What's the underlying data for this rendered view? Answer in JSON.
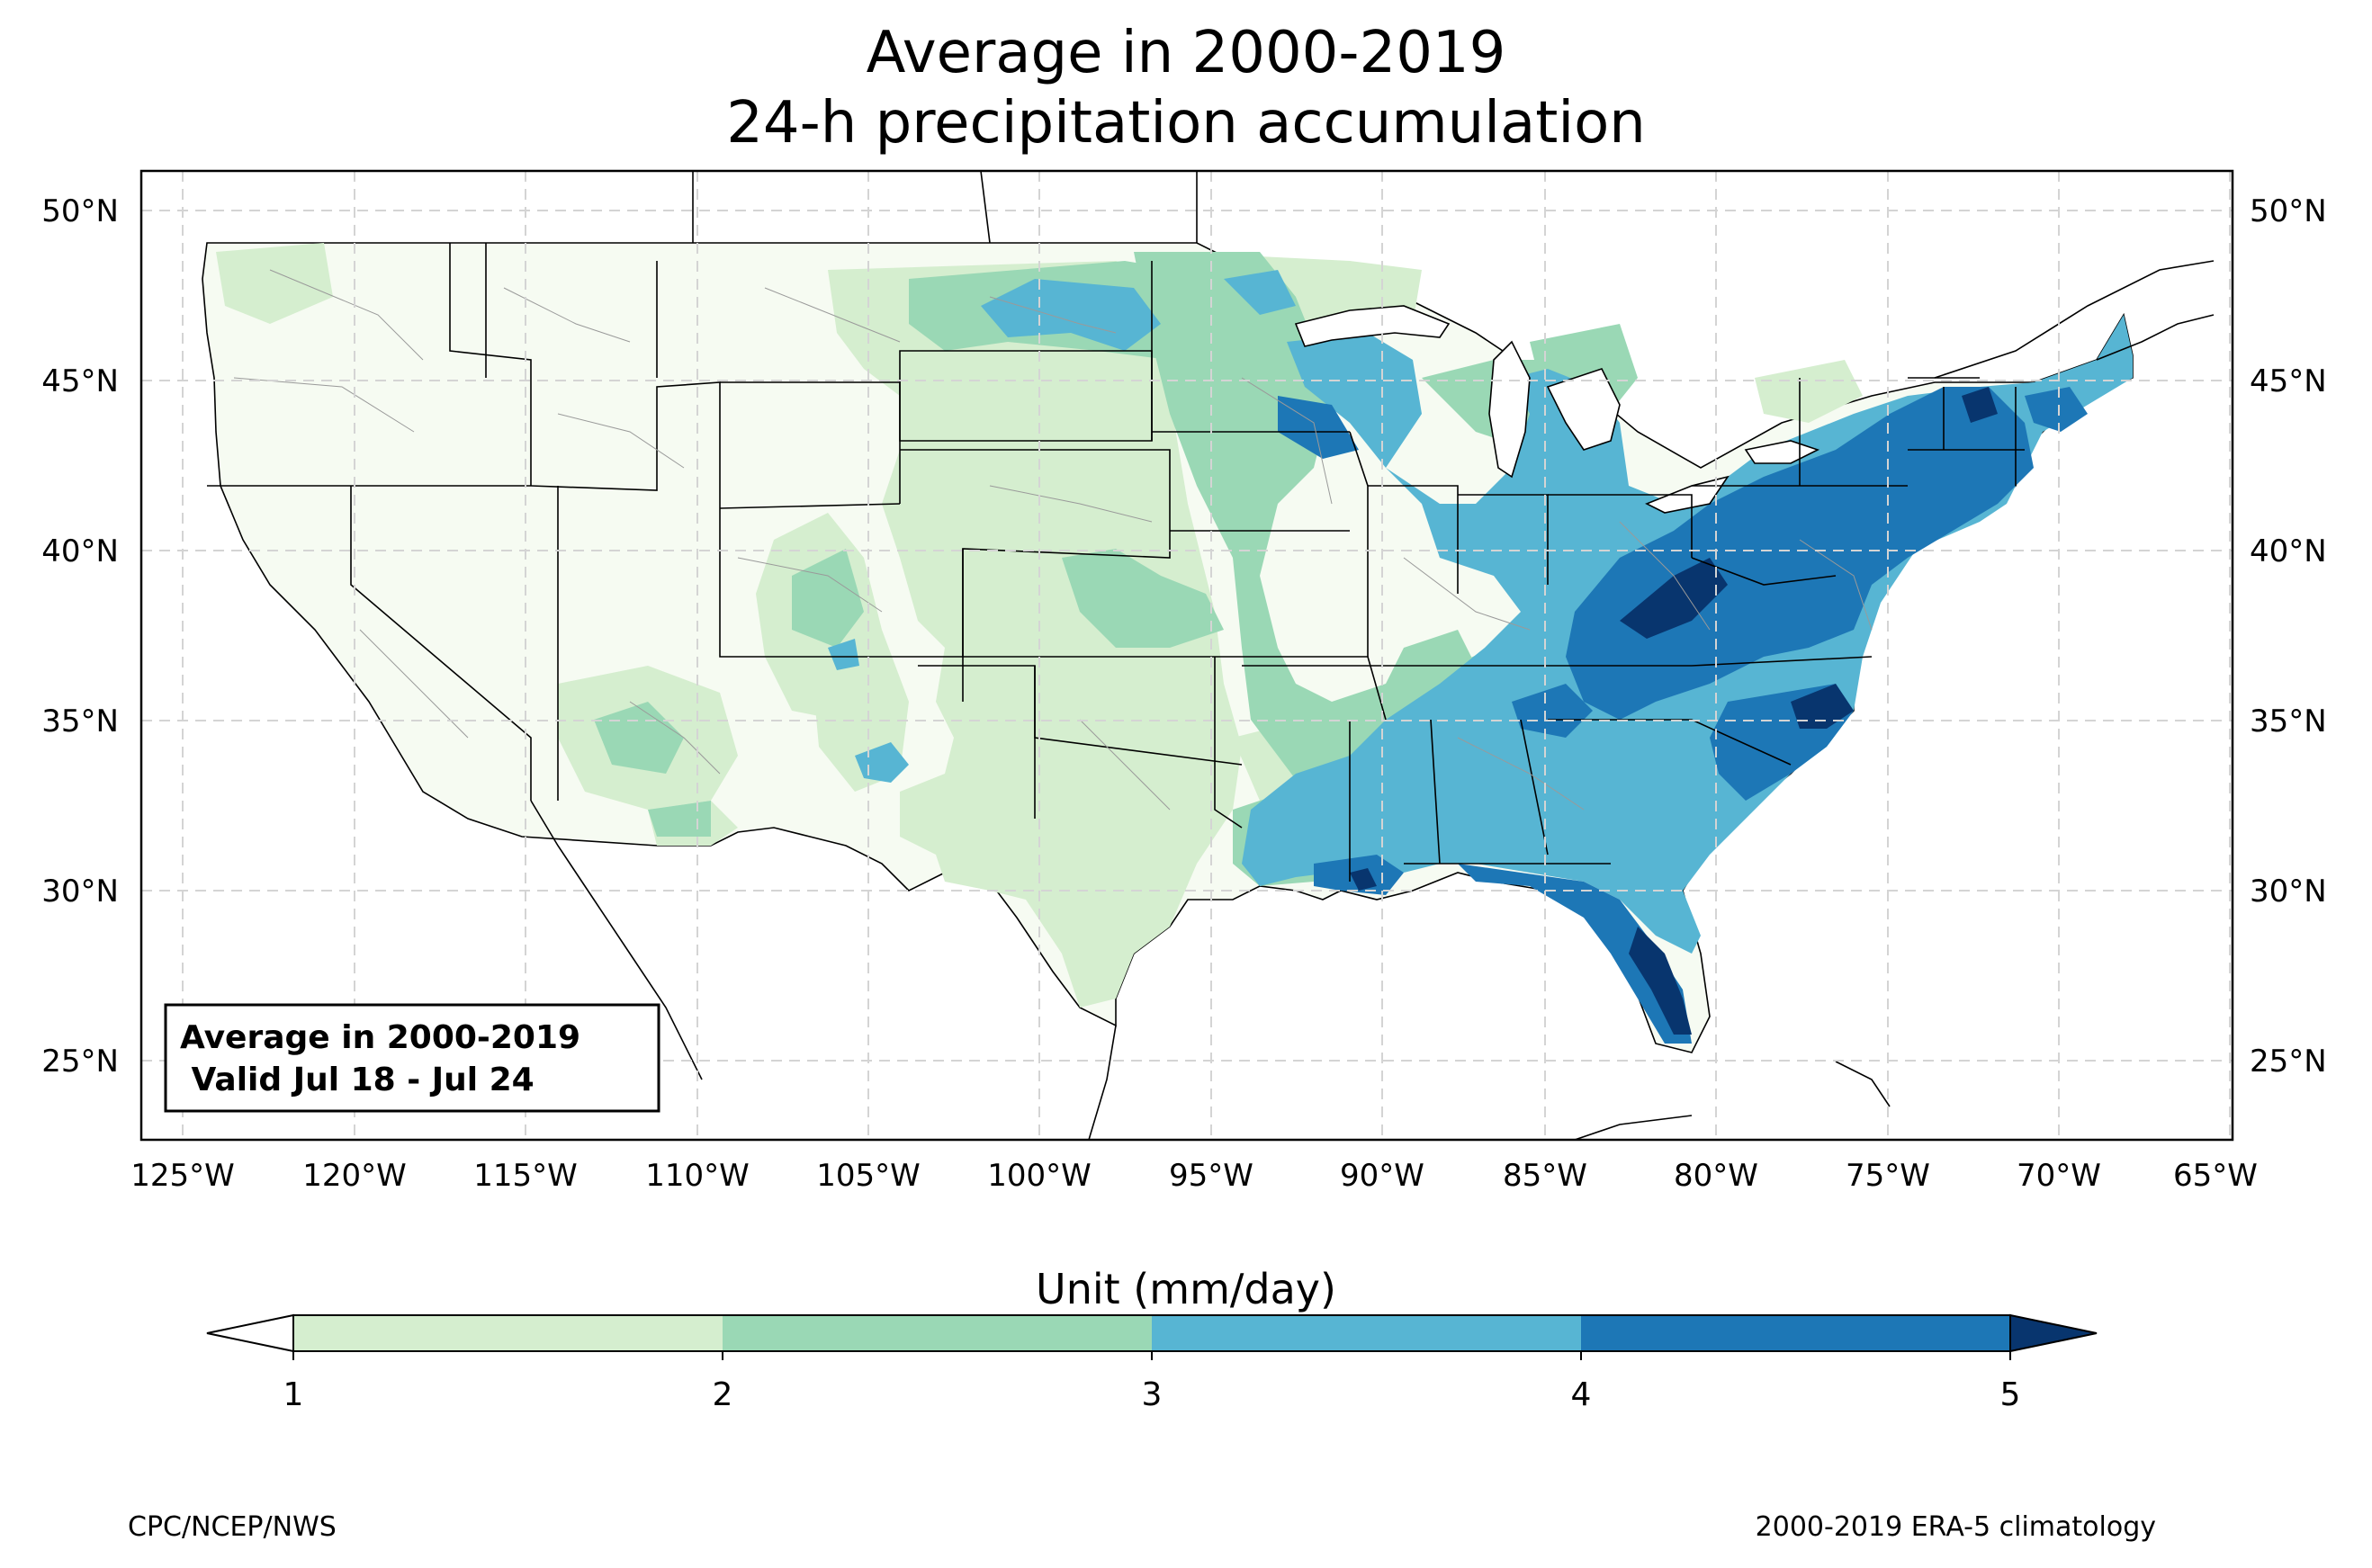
{
  "title_line1": "Average in 2000-2019",
  "title_line2": "24-h precipitation accumulation",
  "legend_box": {
    "line1": "Average in 2000-2019",
    "line2": " Valid Jul 18 - Jul 24"
  },
  "colorbar": {
    "label": "Unit (mm/day)",
    "ticks": [
      "1",
      "2",
      "3",
      "4",
      "5"
    ],
    "bins": [
      {
        "range": "<1",
        "color": "#ffffff"
      },
      {
        "range": "1-2",
        "color": "#d5eecf"
      },
      {
        "range": "2-3",
        "color": "#9ad8b5"
      },
      {
        "range": "3-4",
        "color": "#57b5d3"
      },
      {
        "range": "4-5",
        "color": "#1d77b6"
      },
      {
        "range": ">5",
        "color": "#08356e"
      }
    ]
  },
  "lat_labels": [
    "50°N",
    "45°N",
    "40°N",
    "35°N",
    "30°N",
    "25°N"
  ],
  "lon_labels": [
    "125°W",
    "120°W",
    "115°W",
    "110°W",
    "105°W",
    "100°W",
    "95°W",
    "90°W",
    "85°W",
    "80°W",
    "75°W",
    "70°W",
    "65°W"
  ],
  "footer_left": "CPC/NCEP/NWS",
  "footer_right": "2000-2019 ERA-5 climatology"
}
